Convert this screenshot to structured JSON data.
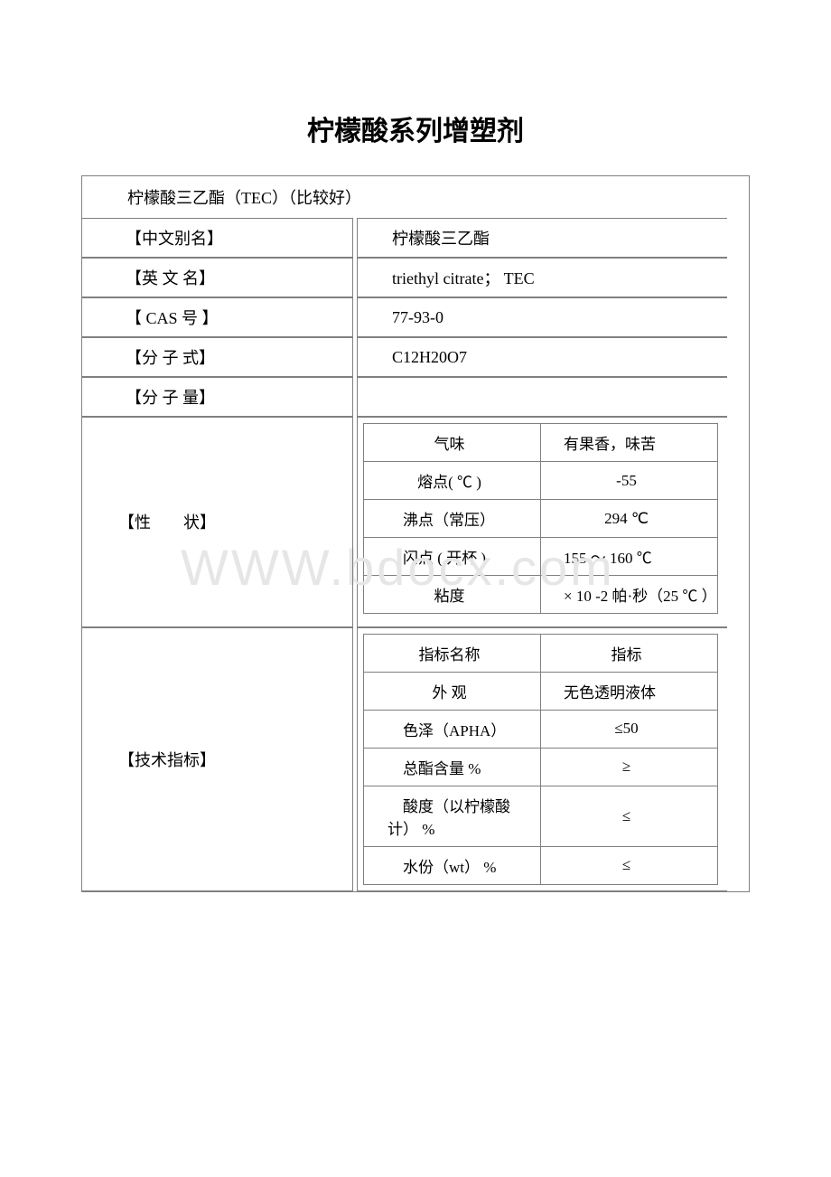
{
  "title": "柠檬酸系列增塑剂",
  "subtitle": "柠檬酸三乙酯（TEC）（比较好）",
  "labels": {
    "cn_alias": "【中文别名】",
    "en_name": "【英 文 名】",
    "cas": "【 CAS 号 】",
    "formula": "【分 子 式】",
    "mw": "【分 子 量】",
    "properties": "【性　　状】",
    "tech": "【技术指标】"
  },
  "values": {
    "cn_alias": "柠檬酸三乙酯",
    "en_name": "triethyl citrate； TEC",
    "cas": "77-93-0",
    "formula": "C12H20O7",
    "mw": ""
  },
  "props": {
    "odor_k": "气味",
    "odor_v": "　有果香，味苦",
    "mp_k": "熔点( ℃ )",
    "mp_v": "-55",
    "bp_k": "　沸点（常压）",
    "bp_v": "294 ℃",
    "fp_k": "　闪点 ( 开杯 )",
    "fp_v": "　155 ～ 160 ℃",
    "visc_k": "粘度",
    "visc_v": "　× 10 -2 帕·秒（25 ℃ ）"
  },
  "tech": {
    "name_k": "指标名称",
    "name_v": "指标",
    "appear_k": "外 观",
    "appear_v": "　无色透明液体",
    "color_k": "　色泽（APHA）",
    "color_v": "≤50",
    "ester_k": "　总酯含量 %",
    "ester_v": "≥",
    "acid_k": "　酸度（以柠檬酸计） %",
    "acid_v": "≤",
    "moist_k": "　水份（wt） %",
    "moist_v": "≤"
  },
  "watermark": "WWW.bdocx.com"
}
